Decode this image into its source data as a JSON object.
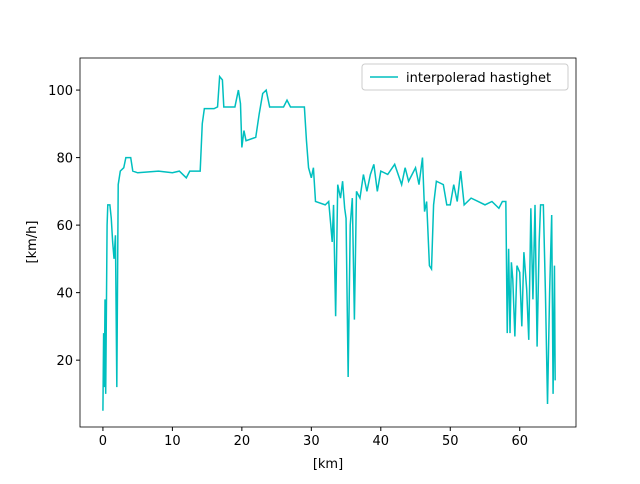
{
  "chart_data": {
    "type": "line",
    "xlabel": "[km]",
    "ylabel": "[km/h]",
    "x": [
      0,
      0.1,
      0.2,
      0.3,
      0.4,
      0.6,
      0.7,
      1.0,
      1.2,
      1.4,
      1.6,
      1.8,
      2.0,
      2.2,
      2.5,
      3,
      3.3,
      4,
      4.3,
      5,
      8,
      10,
      11,
      12,
      12.5,
      14,
      14.3,
      14.6,
      16,
      16.5,
      16.8,
      17.2,
      17.4,
      19,
      19.5,
      19.8,
      20,
      20.3,
      20.6,
      22,
      22.5,
      23,
      23.5,
      24,
      26,
      26.5,
      27,
      29,
      29.3,
      29.6,
      30,
      30.3,
      30.6,
      32,
      32.5,
      32.8,
      33,
      33.2,
      33.5,
      33.8,
      34.2,
      34.5,
      34.8,
      35,
      35.3,
      35.6,
      35.9,
      36.2,
      36.5,
      37,
      37.5,
      38,
      38.5,
      39,
      39.5,
      40,
      41,
      42,
      43,
      43.5,
      44,
      44.5,
      45,
      45.5,
      46,
      46.3,
      46.6,
      47,
      47.3,
      47.6,
      48,
      49,
      49.5,
      50,
      50.5,
      51,
      51.5,
      52,
      53,
      54,
      55,
      56,
      57,
      57.5,
      58,
      58.2,
      58.4,
      58.6,
      58.8,
      59,
      59.3,
      59.6,
      60,
      60.3,
      60.6,
      61,
      61.3,
      61.6,
      61.9,
      62.2,
      62.5,
      62.8,
      63,
      63.4,
      63.7,
      64,
      64.3,
      64.6,
      64.8,
      65,
      65.1
    ],
    "series": [
      {
        "name": "interpolerad hastighet",
        "color": "#00bfbf",
        "values": [
          5,
          28,
          12,
          38,
          10,
          60,
          66,
          66,
          62,
          55,
          50,
          57,
          12,
          72,
          76,
          77,
          80,
          80,
          76,
          75.5,
          76,
          75.5,
          76,
          74,
          76,
          76,
          90,
          94.5,
          94.5,
          95,
          104,
          103,
          95,
          95,
          100,
          96,
          83,
          88,
          85,
          86,
          93,
          99,
          100,
          95,
          95,
          97,
          95,
          95,
          85,
          77,
          74,
          77,
          67,
          66,
          67,
          60,
          55,
          66,
          33,
          72,
          68,
          73,
          65,
          62,
          15,
          60,
          68,
          32,
          70,
          68,
          75,
          70,
          75,
          78,
          70,
          76,
          75,
          78,
          72,
          77,
          73,
          75,
          77,
          72,
          80,
          64,
          67,
          48,
          47,
          66,
          73,
          72,
          66,
          66,
          72,
          67,
          76,
          66,
          68,
          67,
          66,
          67,
          65,
          67,
          67,
          28,
          53,
          28,
          49,
          44,
          27,
          48,
          46,
          30,
          52,
          41,
          26,
          65,
          38,
          66,
          24,
          55,
          66,
          66,
          40,
          7,
          40,
          63,
          10,
          48,
          14
        ]
      }
    ],
    "xlim": [
      -3.3,
      68.1
    ],
    "ylim": [
      0.2,
      109.5
    ],
    "xticks": [
      0,
      10,
      20,
      30,
      40,
      50,
      60
    ],
    "yticks": [
      20,
      40,
      60,
      80,
      100
    ],
    "legend": "upper right"
  }
}
